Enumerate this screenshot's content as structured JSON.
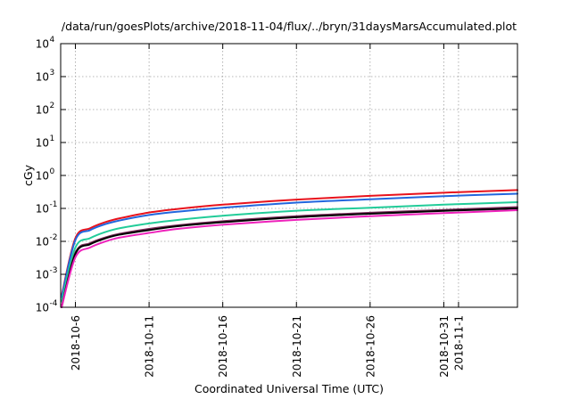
{
  "chart_data": {
    "type": "line",
    "title": "/data/run/goesPlots/archive/2018-11-04/flux/../bryn/31daysMarsAccumulated.plot",
    "xlabel": "Coordinated Universal Time (UTC)",
    "ylabel": "cGy",
    "y_scale": "log",
    "ylim": [
      0.0001,
      10000
    ],
    "xlim": [
      "2018-10-05",
      "2018-11-05"
    ],
    "grid": true,
    "y_ticks": [
      {
        "base": "10",
        "exp": "-4",
        "value": 0.0001
      },
      {
        "base": "10",
        "exp": "-3",
        "value": 0.001
      },
      {
        "base": "10",
        "exp": "-2",
        "value": 0.01
      },
      {
        "base": "10",
        "exp": "-1",
        "value": 0.1
      },
      {
        "base": "10",
        "exp": "0",
        "value": 1
      },
      {
        "base": "10",
        "exp": "1",
        "value": 10
      },
      {
        "base": "10",
        "exp": "2",
        "value": 100
      },
      {
        "base": "10",
        "exp": "3",
        "value": 1000
      },
      {
        "base": "10",
        "exp": "4",
        "value": 10000
      }
    ],
    "x_ticks": [
      {
        "label": "2018-10-6",
        "date": "2018-10-06"
      },
      {
        "label": "2018-10-11",
        "date": "2018-10-11"
      },
      {
        "label": "2018-10-16",
        "date": "2018-10-16"
      },
      {
        "label": "2018-10-21",
        "date": "2018-10-21"
      },
      {
        "label": "2018-10-26",
        "date": "2018-10-26"
      },
      {
        "label": "2018-10-31",
        "date": "2018-10-31"
      },
      {
        "label": "2018-11-1",
        "date": "2018-11-01"
      }
    ],
    "x": [
      "2018-10-05",
      "2018-10-06",
      "2018-10-07",
      "2018-10-08",
      "2018-10-09",
      "2018-10-11",
      "2018-10-13",
      "2018-10-16",
      "2018-10-21",
      "2018-10-26",
      "2018-10-31",
      "2018-11-05"
    ],
    "series": [
      {
        "color": "#e8121c",
        "values": [
          0.00022,
          0.0125,
          0.025,
          0.038,
          0.05,
          0.075,
          0.097,
          0.13,
          0.185,
          0.24,
          0.3,
          0.36
        ]
      },
      {
        "color": "#2266dd",
        "values": [
          0.0002,
          0.011,
          0.022,
          0.033,
          0.043,
          0.063,
          0.08,
          0.105,
          0.15,
          0.19,
          0.235,
          0.28
        ]
      },
      {
        "color": "#22cc99",
        "values": [
          0.00015,
          0.0065,
          0.0125,
          0.019,
          0.025,
          0.035,
          0.045,
          0.06,
          0.085,
          0.105,
          0.13,
          0.155
        ]
      },
      {
        "color": "#7b2d5b",
        "values": [
          0.0001,
          0.0045,
          0.0088,
          0.013,
          0.017,
          0.024,
          0.031,
          0.041,
          0.058,
          0.074,
          0.09,
          0.11
        ]
      },
      {
        "color": "#000000",
        "values": [
          0.0001,
          0.0042,
          0.0082,
          0.0122,
          0.016,
          0.022,
          0.029,
          0.038,
          0.054,
          0.069,
          0.084,
          0.1
        ]
      },
      {
        "color": "#ee22bb",
        "values": [
          0.0001,
          0.0033,
          0.0065,
          0.0098,
          0.013,
          0.018,
          0.024,
          0.032,
          0.045,
          0.058,
          0.072,
          0.088
        ]
      }
    ]
  }
}
